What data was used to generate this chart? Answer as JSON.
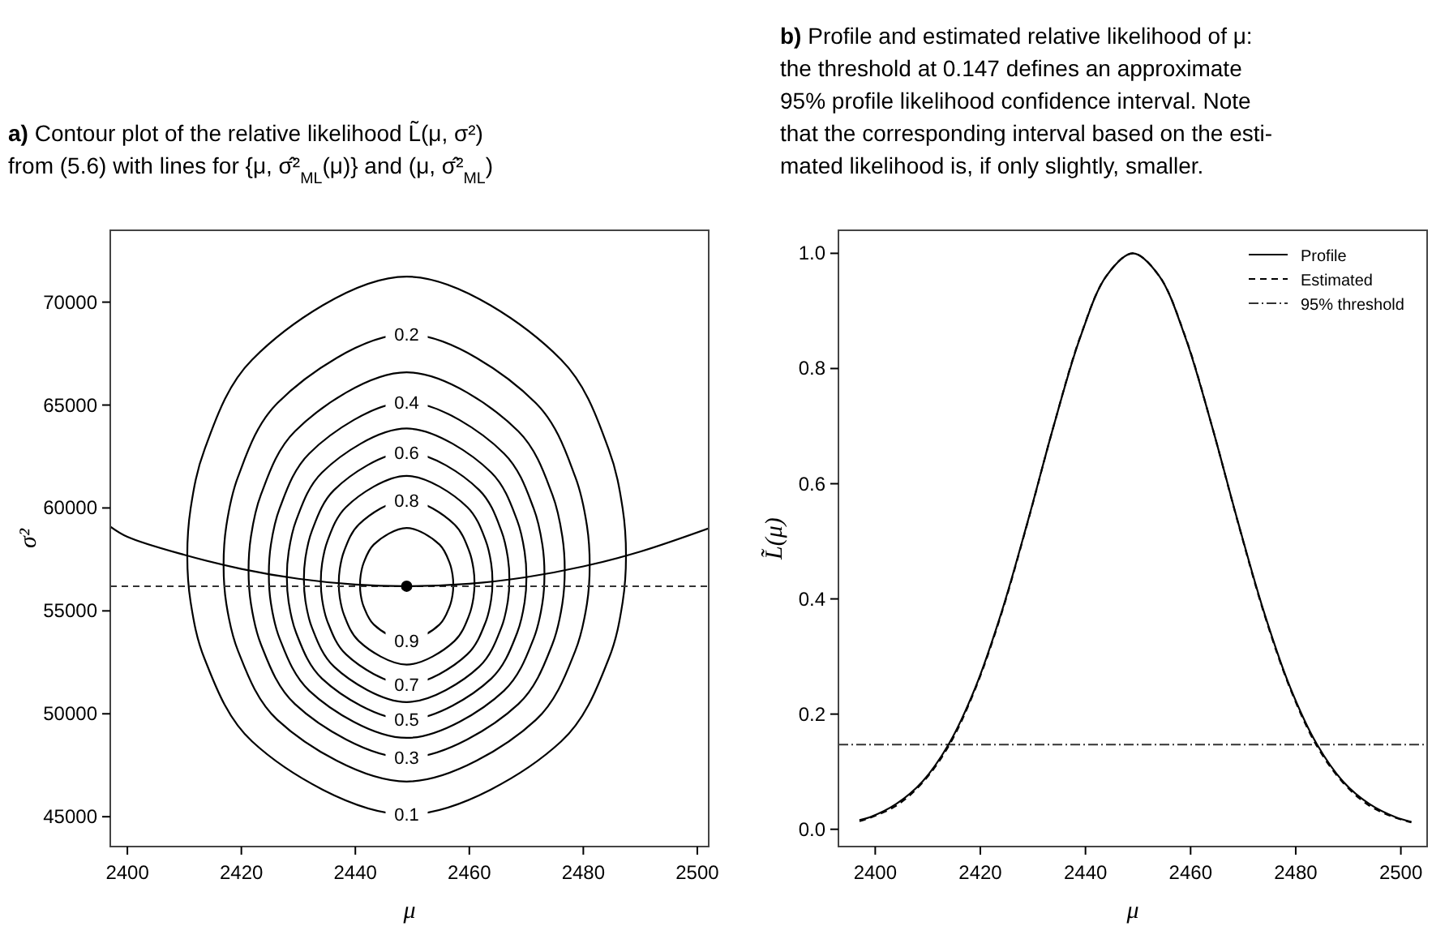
{
  "chart_data": [
    {
      "type": "line",
      "title": "a) Contour plot of the relative likelihood L̃(μ, σ²)\nfrom (5.6) with lines for {μ, σ̂²$_{ML}$(μ)} and (μ, σ̂²$_{ML}$)",
      "xlabel": "μ",
      "ylabel": "σ²",
      "xlim": [
        2397,
        2502
      ],
      "ylim": [
        43550,
        73490
      ],
      "xticks": [
        2400,
        2420,
        2440,
        2460,
        2480,
        2500
      ],
      "yticks": [
        45000,
        50000,
        55000,
        60000,
        65000,
        70000
      ],
      "legend": false,
      "series": [
        {
          "color": "#000000",
          "x": [
            2397,
            2400,
            2410,
            2420,
            2430,
            2440,
            2449,
            2460,
            2470,
            2480,
            2490,
            2502
          ],
          "values": [
            59100,
            58600,
            57720,
            57040,
            56560,
            56280,
            56200,
            56320,
            56640,
            57160,
            57880,
            59010
          ]
        },
        {
          "type": "scatter",
          "marker": "circle",
          "color": "#000000",
          "x": [
            2449
          ],
          "values": [
            56200
          ]
        }
      ],
      "ref_lines": [
        {
          "axis": "y",
          "value": 56200,
          "color": "#333333",
          "line_style": "dashed"
        }
      ],
      "annotations": [
        "0.1",
        "0.2",
        "0.3",
        "0.4",
        "0.5",
        "0.6",
        "0.7",
        "0.8",
        "0.9"
      ]
    },
    {
      "type": "line",
      "title": "b) Profile and estimated relative likelihood of μ:\nthe threshold at 0.147 defines an approximate\n95% profile likelihood confidence interval. Note\nthat the corresponding interval based on the esti-\nmated likelihood is, if only slightly, smaller.",
      "xlabel": "μ",
      "ylabel": "L̃(μ)",
      "xlim": [
        2393,
        2505
      ],
      "ylim": [
        -0.03,
        1.04
      ],
      "xticks": [
        2400,
        2420,
        2440,
        2460,
        2480,
        2500
      ],
      "yticks": [
        {
          "value": 0,
          "label": "0.0"
        },
        0.2,
        0.4,
        0.6,
        0.8,
        {
          "value": 1,
          "label": "1.0"
        }
      ],
      "legend": "top right",
      "series": [
        {
          "name": "Profile",
          "color": "#000000",
          "line_style": "solid",
          "x": [
            2397,
            2399,
            2404,
            2409,
            2414,
            2419,
            2424,
            2429,
            2434,
            2439,
            2444,
            2449,
            2454,
            2459,
            2464,
            2469,
            2474,
            2479,
            2484,
            2489,
            2494,
            2499,
            2502
          ],
          "values": [
            0.016,
            0.021,
            0.044,
            0.083,
            0.148,
            0.245,
            0.376,
            0.534,
            0.702,
            0.854,
            0.961,
            1,
            0.961,
            0.854,
            0.702,
            0.534,
            0.376,
            0.245,
            0.148,
            0.083,
            0.044,
            0.021,
            0.013
          ]
        },
        {
          "name": "Estimated",
          "color": "#000000",
          "line_style": "dashed",
          "x": [
            2397,
            2399,
            2404,
            2409,
            2414,
            2419,
            2424,
            2429,
            2434,
            2439,
            2444,
            2449,
            2454,
            2459,
            2464,
            2469,
            2474,
            2479,
            2484,
            2489,
            2494,
            2499,
            2502
          ],
          "values": [
            0.014,
            0.02,
            0.041,
            0.081,
            0.145,
            0.243,
            0.374,
            0.533,
            0.702,
            0.855,
            0.961,
            1,
            0.961,
            0.855,
            0.702,
            0.533,
            0.374,
            0.243,
            0.145,
            0.081,
            0.041,
            0.02,
            0.012
          ]
        }
      ],
      "ref_lines": [
        {
          "axis": "y",
          "value": 0.147,
          "label": "95% threshold",
          "color": "#333333",
          "line_style": "dashdot"
        }
      ]
    }
  ]
}
